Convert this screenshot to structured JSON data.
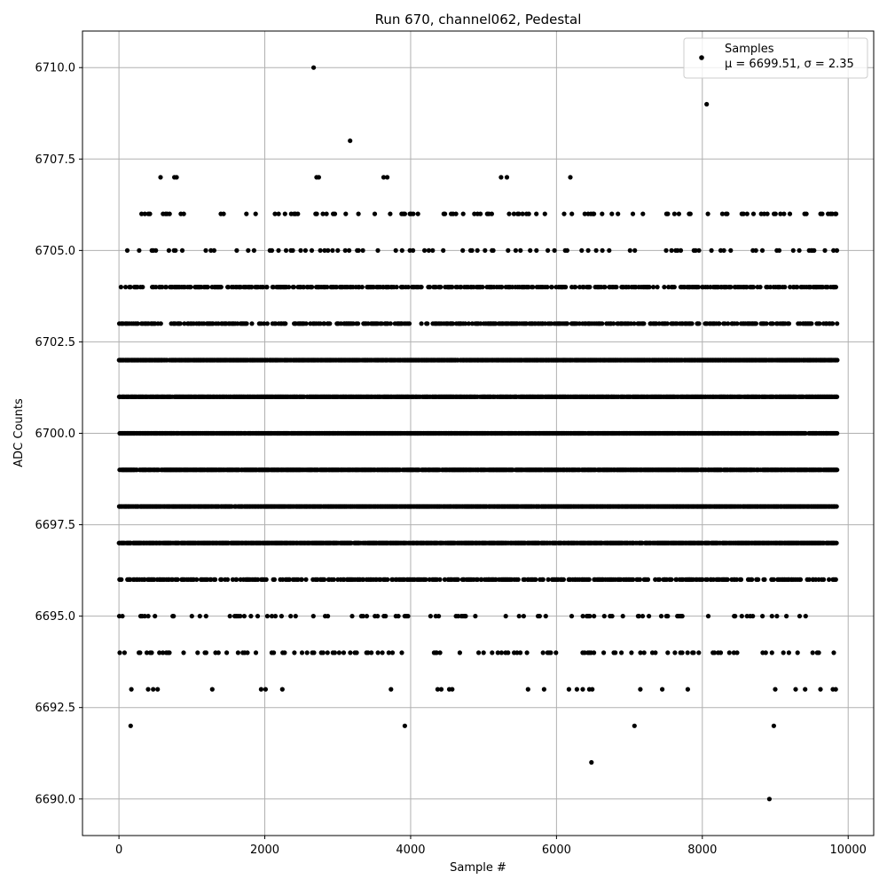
{
  "chart_data": {
    "type": "scatter",
    "title": "Run 670, channel062, Pedestal",
    "xlabel": "Sample #",
    "ylabel": "ADC Counts",
    "xlim": [
      -500,
      10350
    ],
    "ylim": [
      6689.0,
      6711.0
    ],
    "xticks": [
      0,
      2000,
      4000,
      6000,
      8000,
      10000
    ],
    "yticks": [
      6690.0,
      6692.5,
      6695.0,
      6697.5,
      6700.0,
      6702.5,
      6705.0,
      6707.5,
      6710.0
    ],
    "ytick_labels": [
      "6690.0",
      "6692.5",
      "6695.0",
      "6697.5",
      "6700.0",
      "6702.5",
      "6705.0",
      "6707.5",
      "6710.0"
    ],
    "xtick_labels": [
      "0",
      "2000",
      "4000",
      "6000",
      "8000",
      "10000"
    ],
    "grid": true,
    "legend_position": "top-right",
    "series": [
      {
        "name": "Samples",
        "stat_label": "μ = 6699.51, σ = 2.35",
        "color": "#000000",
        "x_range": [
          0,
          9850
        ],
        "dense_levels": [
          6697,
          6698,
          6699,
          6700,
          6701,
          6702
        ],
        "medium_levels": [
          6696,
          6703,
          6704
        ],
        "sparse_levels": [
          6694,
          6695,
          6705,
          6706
        ],
        "points": [
          {
            "x": 2670,
            "y": 6710
          },
          {
            "x": 8060,
            "y": 6709
          },
          {
            "x": 3170,
            "y": 6708
          },
          {
            "x": 570,
            "y": 6707
          },
          {
            "x": 760,
            "y": 6707
          },
          {
            "x": 790,
            "y": 6707
          },
          {
            "x": 2710,
            "y": 6707
          },
          {
            "x": 2740,
            "y": 6707
          },
          {
            "x": 3630,
            "y": 6707
          },
          {
            "x": 3680,
            "y": 6707
          },
          {
            "x": 5240,
            "y": 6707
          },
          {
            "x": 5320,
            "y": 6707
          },
          {
            "x": 6190,
            "y": 6707
          },
          {
            "x": 170,
            "y": 6693
          },
          {
            "x": 400,
            "y": 6693
          },
          {
            "x": 470,
            "y": 6693
          },
          {
            "x": 530,
            "y": 6693
          },
          {
            "x": 1280,
            "y": 6693
          },
          {
            "x": 1950,
            "y": 6693
          },
          {
            "x": 2010,
            "y": 6693
          },
          {
            "x": 2240,
            "y": 6693
          },
          {
            "x": 3730,
            "y": 6693
          },
          {
            "x": 4370,
            "y": 6693
          },
          {
            "x": 4420,
            "y": 6693
          },
          {
            "x": 4530,
            "y": 6693
          },
          {
            "x": 4570,
            "y": 6693
          },
          {
            "x": 5610,
            "y": 6693
          },
          {
            "x": 5830,
            "y": 6693
          },
          {
            "x": 6170,
            "y": 6693
          },
          {
            "x": 6280,
            "y": 6693
          },
          {
            "x": 6360,
            "y": 6693
          },
          {
            "x": 6450,
            "y": 6693
          },
          {
            "x": 6490,
            "y": 6693
          },
          {
            "x": 7150,
            "y": 6693
          },
          {
            "x": 7450,
            "y": 6693
          },
          {
            "x": 7800,
            "y": 6693
          },
          {
            "x": 9000,
            "y": 6693
          },
          {
            "x": 9280,
            "y": 6693
          },
          {
            "x": 9410,
            "y": 6693
          },
          {
            "x": 9620,
            "y": 6693
          },
          {
            "x": 9790,
            "y": 6693
          },
          {
            "x": 9830,
            "y": 6693
          },
          {
            "x": 160,
            "y": 6692
          },
          {
            "x": 3920,
            "y": 6692
          },
          {
            "x": 7070,
            "y": 6692
          },
          {
            "x": 8980,
            "y": 6692
          },
          {
            "x": 6480,
            "y": 6691
          },
          {
            "x": 8920,
            "y": 6690
          }
        ]
      }
    ]
  }
}
